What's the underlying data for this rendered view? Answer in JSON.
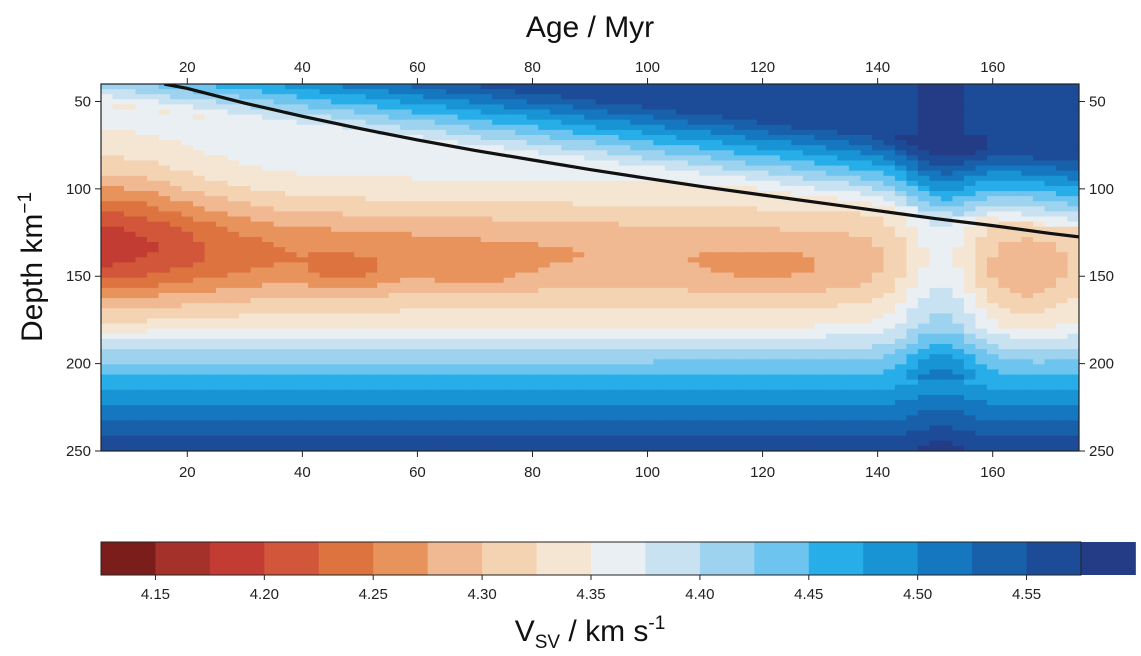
{
  "chart_data": {
    "type": "heatmap",
    "x_axis": {
      "label": "Age / Myr",
      "range": [
        5,
        175
      ],
      "ticks": [
        20,
        40,
        60,
        80,
        100,
        120,
        140,
        160
      ],
      "tick_labels": [
        "20",
        "40",
        "60",
        "80",
        "100",
        "120",
        "140",
        "160"
      ],
      "shown_on": [
        "top",
        "bottom"
      ]
    },
    "y_axis": {
      "label": "Depth km",
      "label_superscript": "−1",
      "range": [
        40,
        250
      ],
      "reversed": true,
      "ticks": [
        50,
        100,
        150,
        200,
        250
      ],
      "tick_labels": [
        "50",
        "100",
        "150",
        "200",
        "250"
      ],
      "shown_on": [
        "left",
        "right"
      ]
    },
    "colorbar": {
      "label_main": "V",
      "label_sub": "SV",
      "label_unit": " / km s",
      "label_sup": "-1",
      "range": [
        4.125,
        4.575
      ],
      "step": 0.025,
      "ticks": [
        4.15,
        4.2,
        4.25,
        4.3,
        4.35,
        4.4,
        4.45,
        4.5,
        4.55
      ],
      "tick_labels": [
        "4.15",
        "4.20",
        "4.25",
        "4.30",
        "4.35",
        "4.40",
        "4.45",
        "4.50",
        "4.55"
      ],
      "colors": [
        "#7a1d1b",
        "#a4322a",
        "#c23c33",
        "#d2573a",
        "#dd7440",
        "#e8935c",
        "#f0b991",
        "#f4d3b2",
        "#f5e6d4",
        "#e9eff3",
        "#c9e2f1",
        "#9ed3ef",
        "#6dc4ef",
        "#27ade8",
        "#1894d4",
        "#1577c0",
        "#1960aa",
        "#1c4b98",
        "#243c86"
      ]
    },
    "grid": false,
    "contour_line": {
      "description": "thermal boundary depth vs age",
      "x": [
        16,
        20,
        30,
        40,
        50,
        60,
        70,
        80,
        90,
        100,
        110,
        120,
        130,
        140,
        150,
        160,
        170,
        175
      ],
      "y": [
        40,
        42.5,
        51,
        58.5,
        65.5,
        72,
        78,
        83.5,
        89,
        94,
        99,
        103.5,
        108,
        112.5,
        117,
        121,
        125.5,
        127.5
      ]
    }
  }
}
